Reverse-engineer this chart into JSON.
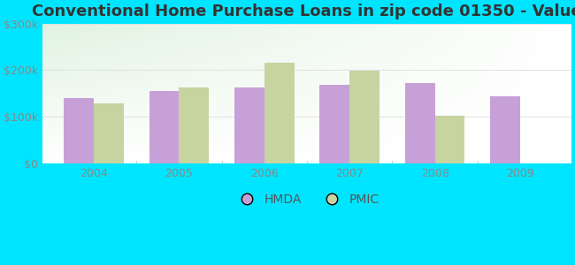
{
  "title": "Conventional Home Purchase Loans in zip code 01350 - Value",
  "years": [
    "2004",
    "2005",
    "2006",
    "2007",
    "2008",
    "2009"
  ],
  "hmda_values": [
    140000,
    155000,
    163000,
    168000,
    173000,
    143000
  ],
  "pmic_values": [
    128000,
    163000,
    215000,
    198000,
    103000,
    null
  ],
  "hmda_color": "#c8a0d8",
  "pmic_color": "#c8d4a0",
  "ylim": [
    0,
    300000
  ],
  "yticks": [
    0,
    100000,
    200000,
    300000
  ],
  "ytick_labels": [
    "$0",
    "$100k",
    "$200k",
    "$300k"
  ],
  "background_color_fig": "#00e5ff",
  "title_fontsize": 13,
  "bar_width": 0.35,
  "legend_labels": [
    "HMDA",
    "PMIC"
  ],
  "tick_color": "#888888",
  "grid_color": "#dddddd"
}
